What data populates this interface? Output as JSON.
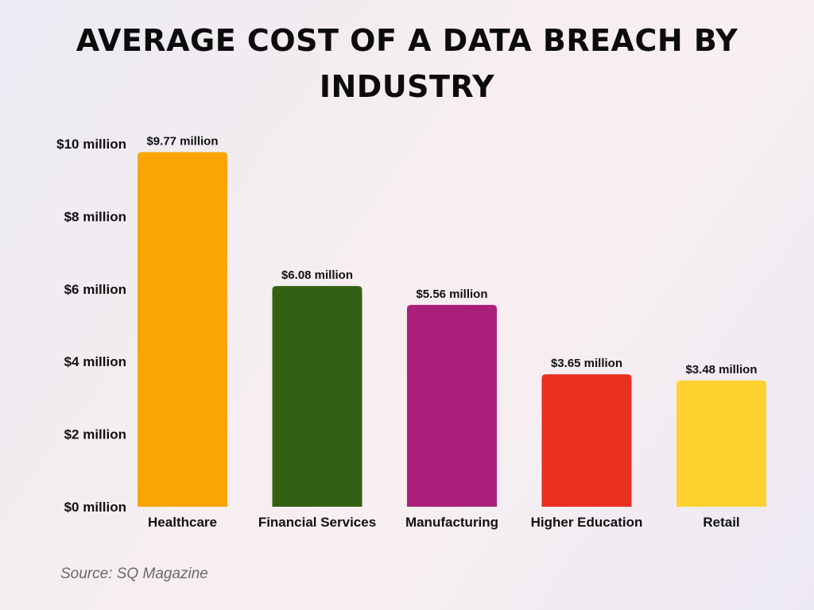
{
  "chart_data": {
    "type": "bar",
    "title": "AVERAGE COST OF A DATA BREACH BY INDUSTRY",
    "categories": [
      "Healthcare",
      "Financial Services",
      "Manufacturing",
      "Higher Education",
      "Retail"
    ],
    "values": [
      9.77,
      6.08,
      5.56,
      3.65,
      3.48
    ],
    "value_labels": [
      "$9.77 million",
      "$6.08 million",
      "$5.56 million",
      "$3.65 million",
      "$3.48 million"
    ],
    "colors": [
      "#f9a602",
      "#336113",
      "#aa1f79",
      "#e92f20",
      "#fed330"
    ],
    "ylim": [
      0,
      10
    ],
    "yticks": [
      0,
      2,
      4,
      6,
      8,
      10
    ],
    "ytick_labels": [
      "$0 million",
      "$2 million",
      "$4 million",
      "$6 million",
      "$8 million",
      "$10 million"
    ],
    "xlabel": "",
    "ylabel": "",
    "grid": false,
    "legend": "none"
  },
  "footer": {
    "source": "Source: SQ Magazine"
  }
}
